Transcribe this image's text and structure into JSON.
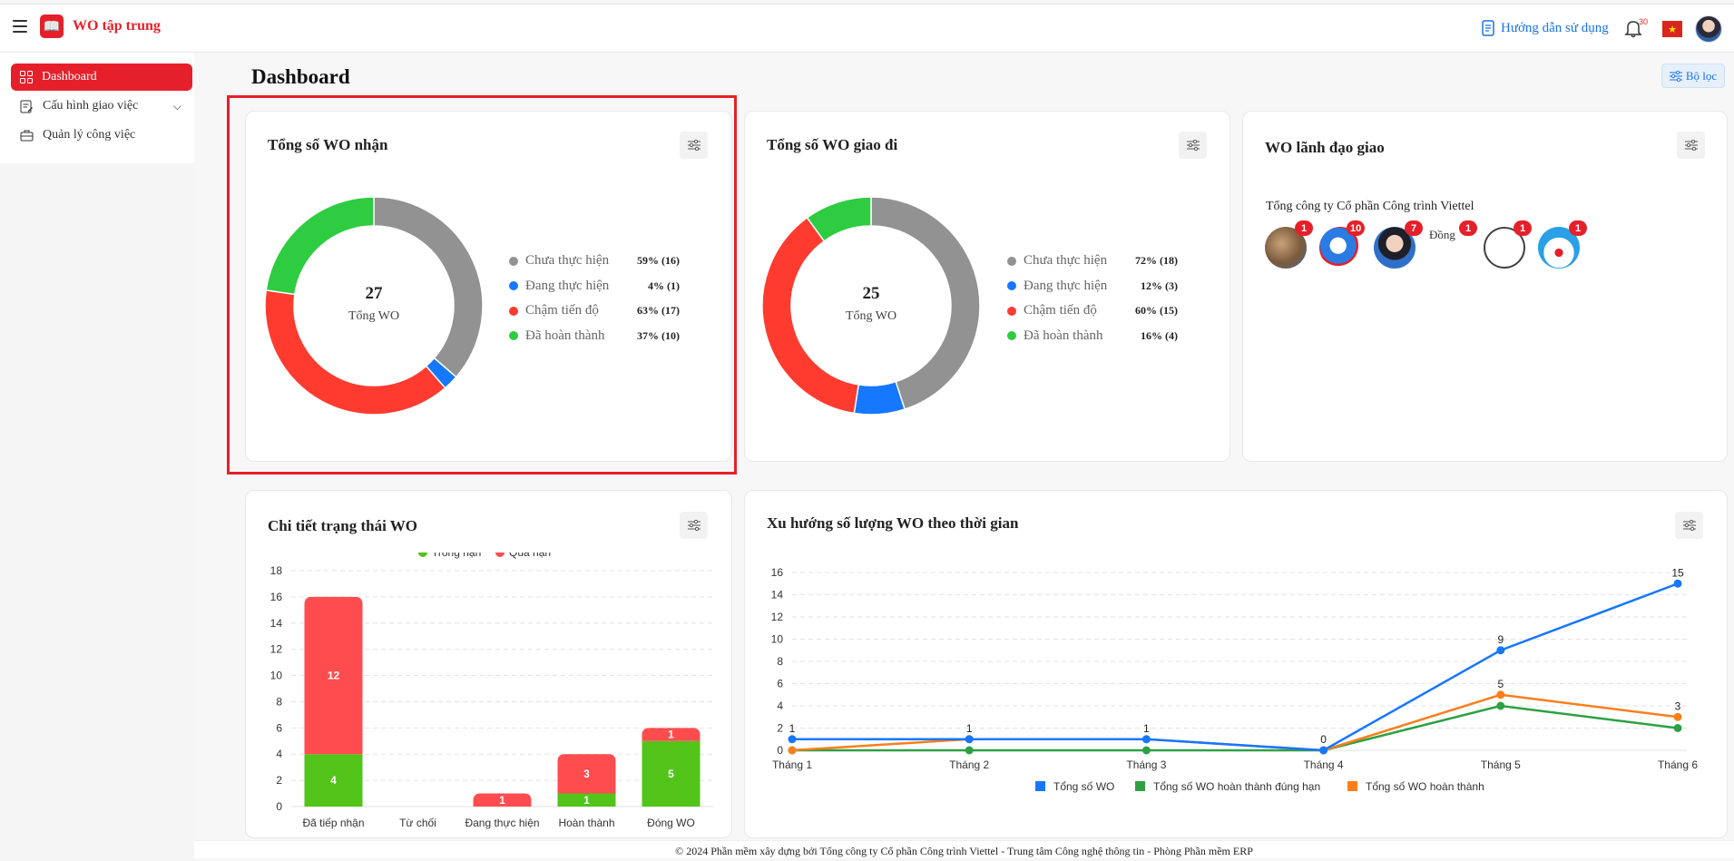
{
  "app": {
    "title": "WO tập trung",
    "logo_icon": "book-logo-icon",
    "brand_color": "#e6202a"
  },
  "topbar": {
    "guide_label": "Hướng dẫn sử dụng",
    "notification_count": "30"
  },
  "sidebar": {
    "items": [
      {
        "label": "Dashboard",
        "active": true
      },
      {
        "label": "Cấu hình giao việc",
        "active": false
      },
      {
        "label": "Quản lý công việc",
        "active": false
      }
    ]
  },
  "page": {
    "title": "Dashboard",
    "filter_label": "Bộ lọc"
  },
  "received": {
    "title": "Tổng số WO nhận",
    "total": "27",
    "total_label": "Tổng WO",
    "legend": [
      {
        "label": "Chưa thực hiện",
        "value": "59% (16)",
        "color": "#929292"
      },
      {
        "label": "Đang thực hiện",
        "value": "4% (1)",
        "color": "#1677ff"
      },
      {
        "label": "Chậm tiến độ",
        "value": "63% (17)",
        "color": "#ff3b30"
      },
      {
        "label": "Đã hoàn thành",
        "value": "37% (10)",
        "color": "#2ecc40"
      }
    ]
  },
  "assigned": {
    "title": "Tổng số WO giao đi",
    "total": "25",
    "total_label": "Tổng WO",
    "legend": [
      {
        "label": "Chưa thực hiện",
        "value": "72% (18)",
        "color": "#929292"
      },
      {
        "label": "Đang thực hiện",
        "value": "12% (3)",
        "color": "#1677ff"
      },
      {
        "label": "Chậm tiến độ",
        "value": "60% (15)",
        "color": "#ff3b30"
      },
      {
        "label": "Đã hoàn thành",
        "value": "16% (4)",
        "color": "#2ecc40"
      }
    ]
  },
  "leaders": {
    "title": "WO lãnh đạo giao",
    "org": "Tổng công ty Cổ phần Công trình Viettel",
    "people": [
      {
        "count": "1"
      },
      {
        "count": "10"
      },
      {
        "count": "7"
      },
      {
        "count": "1",
        "alt": "Đồng"
      },
      {
        "count": "1"
      },
      {
        "count": "1"
      }
    ]
  },
  "status_detail": {
    "title": "Chi tiết trạng thái WO"
  },
  "trend": {
    "title": "Xu hướng số lượng WO theo thời gian"
  },
  "chart_data": [
    {
      "type": "pie",
      "title": "Tổng số WO nhận",
      "categories": [
        "Chưa thực hiện",
        "Đang thực hiện",
        "Chậm tiến độ",
        "Đã hoàn thành"
      ],
      "values": [
        16,
        1,
        17,
        10
      ],
      "colors": [
        "#929292",
        "#1677ff",
        "#ff3b30",
        "#2ecc40"
      ]
    },
    {
      "type": "pie",
      "title": "Tổng số WO giao đi",
      "categories": [
        "Chưa thực hiện",
        "Đang thực hiện",
        "Chậm tiến độ",
        "Đã hoàn thành"
      ],
      "values": [
        18,
        3,
        15,
        4
      ],
      "colors": [
        "#929292",
        "#1677ff",
        "#ff3b30",
        "#2ecc40"
      ]
    },
    {
      "type": "bar",
      "title": "Chi tiết trạng thái WO",
      "stacked": true,
      "categories": [
        "Đã tiếp nhận",
        "Từ chối",
        "Đang thực hiện",
        "Hoàn thành",
        "Đóng WO"
      ],
      "series": [
        {
          "name": "Trong hạn",
          "values": [
            4,
            0,
            0,
            1,
            5
          ],
          "color": "#52c41a"
        },
        {
          "name": "Quá hạn",
          "values": [
            12,
            0,
            1,
            3,
            1
          ],
          "color": "#ff4d4f"
        }
      ],
      "ylim": [
        0,
        18
      ],
      "yticks": [
        0,
        2,
        4,
        6,
        8,
        10,
        12,
        14,
        16,
        18
      ],
      "legend": "top",
      "grid": true
    },
    {
      "type": "line",
      "title": "Xu hướng số lượng WO theo thời gian",
      "categories": [
        "Tháng 1",
        "Tháng 2",
        "Tháng 3",
        "Tháng 4",
        "Tháng 5",
        "Tháng 6"
      ],
      "series": [
        {
          "name": "Tổng số WO",
          "values": [
            1,
            1,
            1,
            0,
            9,
            15
          ],
          "color": "#1677ff",
          "labels": [
            "1",
            "1",
            "1",
            "0",
            "9",
            "15"
          ]
        },
        {
          "name": "Tổng số WO hoàn thành đúng hạn",
          "values": [
            0,
            0,
            0,
            0,
            4,
            2
          ],
          "color": "#2ea043",
          "labels": [
            "",
            "",
            "",
            "",
            "",
            ""
          ]
        },
        {
          "name": "Tổng số WO hoàn thành",
          "values": [
            0,
            1,
            1,
            0,
            5,
            3
          ],
          "color": "#fa7f1c",
          "labels": [
            "",
            "",
            "",
            "",
            "5",
            "3"
          ]
        }
      ],
      "ylim": [
        0,
        16
      ],
      "yticks": [
        0,
        2,
        4,
        6,
        8,
        10,
        12,
        14,
        16
      ],
      "legend": "bottom",
      "grid": true
    }
  ],
  "footer": {
    "text": "© 2024 Phần mềm xây dựng bởi Tổng công ty Cổ phần Công trình Viettel - Trung tâm Công nghệ thông tin - Phòng Phần mềm ERP"
  }
}
